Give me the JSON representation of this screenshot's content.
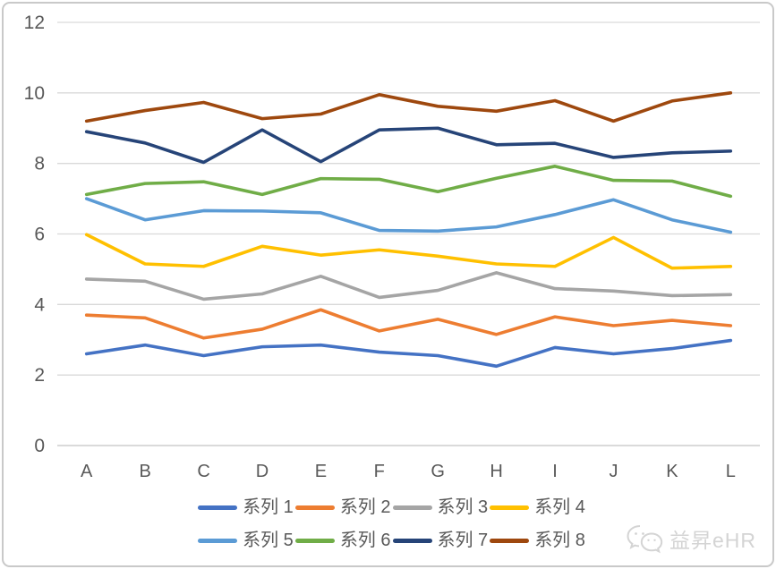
{
  "chart_data": {
    "type": "line",
    "title": "",
    "xlabel": "",
    "ylabel": "",
    "categories": [
      "A",
      "B",
      "C",
      "D",
      "E",
      "F",
      "G",
      "H",
      "I",
      "J",
      "K",
      "L"
    ],
    "series": [
      {
        "name": "系列 1",
        "color": "#4472C4",
        "values": [
          2.6,
          2.85,
          2.55,
          2.8,
          2.85,
          2.65,
          2.55,
          2.25,
          2.78,
          2.6,
          2.75,
          2.98
        ]
      },
      {
        "name": "系列 2",
        "color": "#ED7D31",
        "values": [
          3.7,
          3.62,
          3.05,
          3.3,
          3.85,
          3.25,
          3.58,
          3.15,
          3.65,
          3.4,
          3.55,
          3.4
        ]
      },
      {
        "name": "系列 3",
        "color": "#A5A5A5",
        "values": [
          4.72,
          4.66,
          4.15,
          4.3,
          4.8,
          4.2,
          4.4,
          4.9,
          4.45,
          4.38,
          4.25,
          4.28
        ]
      },
      {
        "name": "系列 4",
        "color": "#FFC000",
        "values": [
          5.98,
          5.15,
          5.08,
          5.65,
          5.4,
          5.55,
          5.37,
          5.15,
          5.08,
          5.9,
          5.03,
          5.08
        ]
      },
      {
        "name": "系列 5",
        "color": "#5B9BD5",
        "values": [
          7.0,
          6.4,
          6.66,
          6.65,
          6.6,
          6.1,
          6.08,
          6.2,
          6.55,
          6.97,
          6.4,
          6.05
        ]
      },
      {
        "name": "系列 6",
        "color": "#70AD47",
        "values": [
          7.12,
          7.43,
          7.48,
          7.12,
          7.57,
          7.55,
          7.2,
          7.58,
          7.92,
          7.52,
          7.5,
          7.07
        ]
      },
      {
        "name": "系列 7",
        "color": "#264478",
        "values": [
          8.9,
          8.58,
          8.03,
          8.95,
          8.05,
          8.95,
          9.0,
          8.53,
          8.57,
          8.17,
          8.3,
          8.35
        ]
      },
      {
        "name": "系列 8",
        "color": "#9E480E",
        "values": [
          9.2,
          9.5,
          9.73,
          9.27,
          9.4,
          9.95,
          9.62,
          9.48,
          9.78,
          9.2,
          9.77,
          10.0
        ]
      }
    ],
    "ylim": [
      0,
      12
    ],
    "yticks": [
      0,
      2,
      4,
      6,
      8,
      10,
      12
    ],
    "ytick_labels": [
      "0",
      "2",
      "4",
      "6",
      "8",
      "10",
      "12"
    ],
    "grid": true,
    "legend_position": "bottom",
    "legend_rows": [
      [
        "系列 1",
        "系列 2",
        "系列 3",
        "系列 4"
      ],
      [
        "系列 5",
        "系列 6",
        "系列 7",
        "系列 8"
      ]
    ]
  },
  "style_colors": {
    "gridline": "#D9D9D9",
    "axis_line": "#C3C3C3",
    "tick_label": "#595959",
    "legend_text": "#595959",
    "frame_border": "#C9C9C9",
    "watermark": "#D4D4D4"
  },
  "watermark": {
    "text": "益昇eHR",
    "icon": "wechat-icon"
  }
}
